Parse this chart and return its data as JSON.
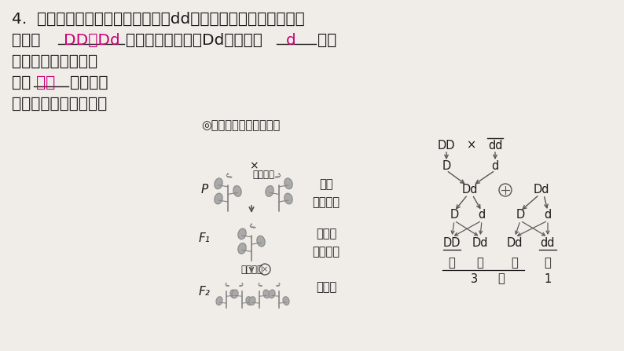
{
  "bg_color": "#f0ede8",
  "text_color": "#1a1a1a",
  "answer_color": "#cc0077",
  "diagram_color": "#555555",
  "fig_width": 7.94,
  "fig_height": 4.47,
  "dpi": 100,
  "fs_main": 14.5,
  "fs_small": 10.5,
  "fs_label": 10,
  "line1": "4.  若表现为隐性性状的基因组成为dd，则表现为显性性状的基因",
  "line2_a": "组成有",
  "line2_ans1": "DD、Dd",
  "line2_b": "两种。基因组成是Dd时，虽然",
  "line2_ans2": "d",
  "line2_c": "基因",
  "line3": "控制的性状不表现，",
  "line4_a": "但会",
  "line4_ans3": "遗传",
  "line4_b": "下去，影",
  "line5": "响下一代（如下图）。",
  "subtitle": "◎孟德尔的豌豆杂交实验",
  "p_label": "P",
  "f1_label": "F₁",
  "f2_label": "F₂",
  "cross_label": "×",
  "jazao_label": "（杂交）",
  "zijiao_label": "（自交）",
  "row_labels": [
    "亲本",
    "生殖细胞",
    "子一代",
    "生殖细胞",
    "子二代"
  ],
  "r_DD": "DD",
  "r_x": "×",
  "r_dd": "dd",
  "r_D": "D",
  "r_d": "d",
  "r_Dd1": "Dd",
  "r_otimes": "⊗",
  "r_Dd2": "Dd",
  "r_gametes": [
    "D",
    "d",
    "D",
    "d"
  ],
  "r_f2": [
    "DD",
    "Dd",
    "Dd",
    "dd"
  ],
  "r_phenotypes": [
    "高",
    "高",
    "高",
    "矮"
  ],
  "r_ratio": [
    "3",
    "：",
    "1"
  ]
}
